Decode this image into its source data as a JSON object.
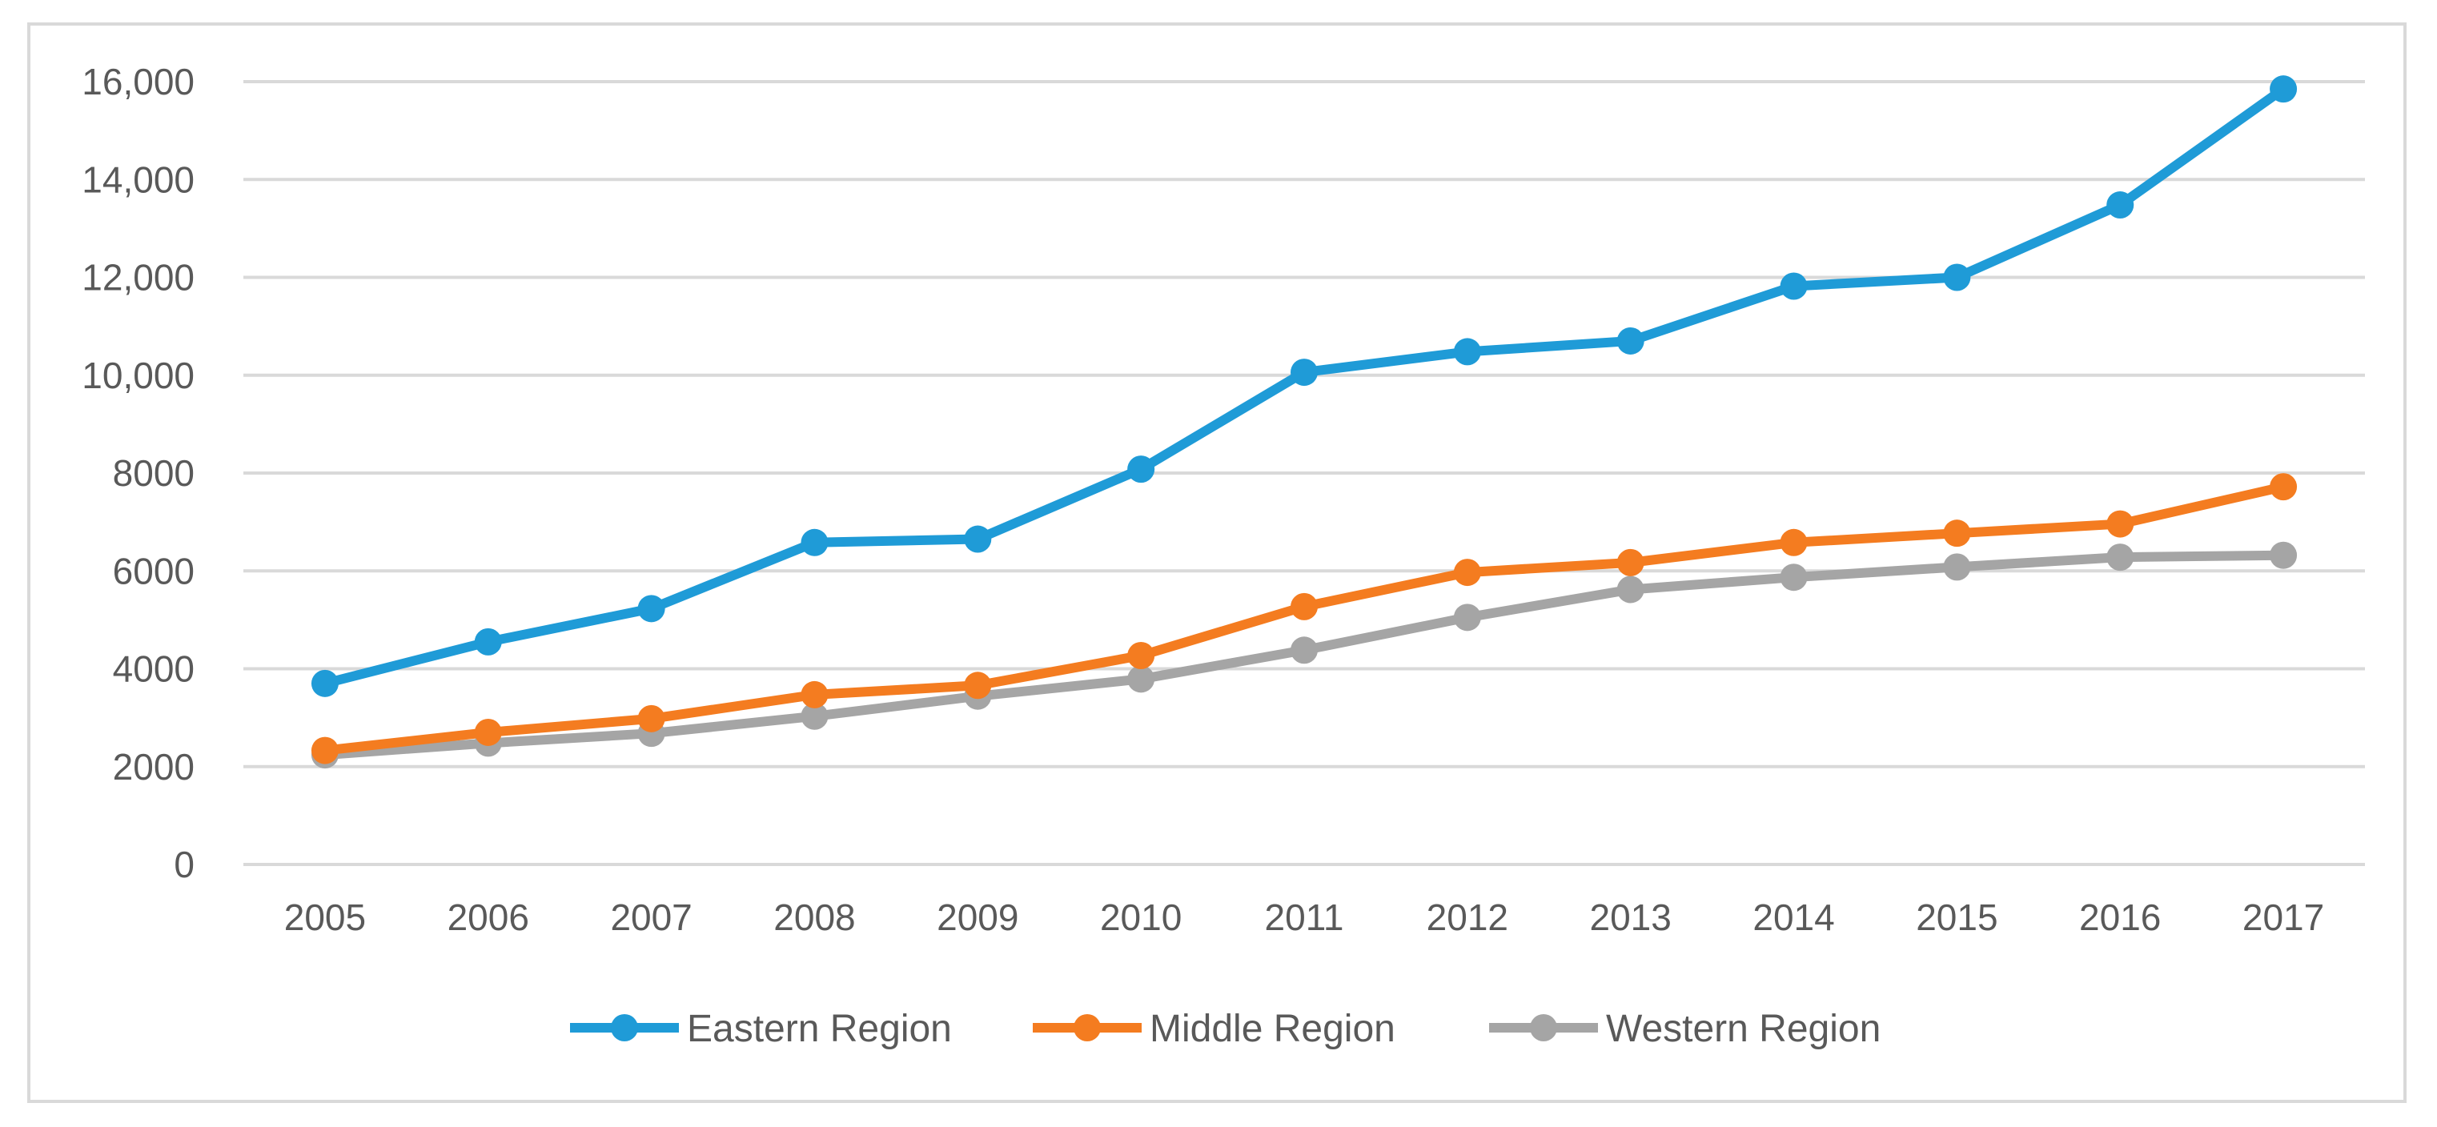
{
  "chart_data": {
    "type": "line",
    "title": "",
    "xlabel": "",
    "ylabel": "",
    "ylim": [
      0,
      16000
    ],
    "y_ticks": [
      0,
      2000,
      4000,
      6000,
      8000,
      10000,
      12000,
      14000,
      16000
    ],
    "y_tick_labels": [
      "0",
      "2000",
      "4000",
      "6000",
      "8000",
      "10,000",
      "12,000",
      "14,000",
      "16,000"
    ],
    "grid": true,
    "legend_position": "bottom-center",
    "categories": [
      "2005",
      "2006",
      "2007",
      "2008",
      "2009",
      "2010",
      "2011",
      "2012",
      "2013",
      "2014",
      "2015",
      "2016",
      "2017"
    ],
    "series": [
      {
        "name": "Eastern Region",
        "color": "#1f9bd7",
        "values": [
          3700,
          4550,
          5230,
          6580,
          6650,
          8080,
          10060,
          10480,
          10700,
          11820,
          12000,
          13480,
          15850
        ]
      },
      {
        "name": "Middle Region",
        "color": "#f47c20",
        "values": [
          2330,
          2700,
          2980,
          3470,
          3660,
          4270,
          5270,
          5970,
          6170,
          6580,
          6770,
          6960,
          7720
        ]
      },
      {
        "name": "Western Region",
        "color": "#a5a5a5",
        "values": [
          2240,
          2480,
          2680,
          3030,
          3440,
          3790,
          4380,
          5050,
          5620,
          5870,
          6080,
          6280,
          6320
        ]
      }
    ]
  }
}
